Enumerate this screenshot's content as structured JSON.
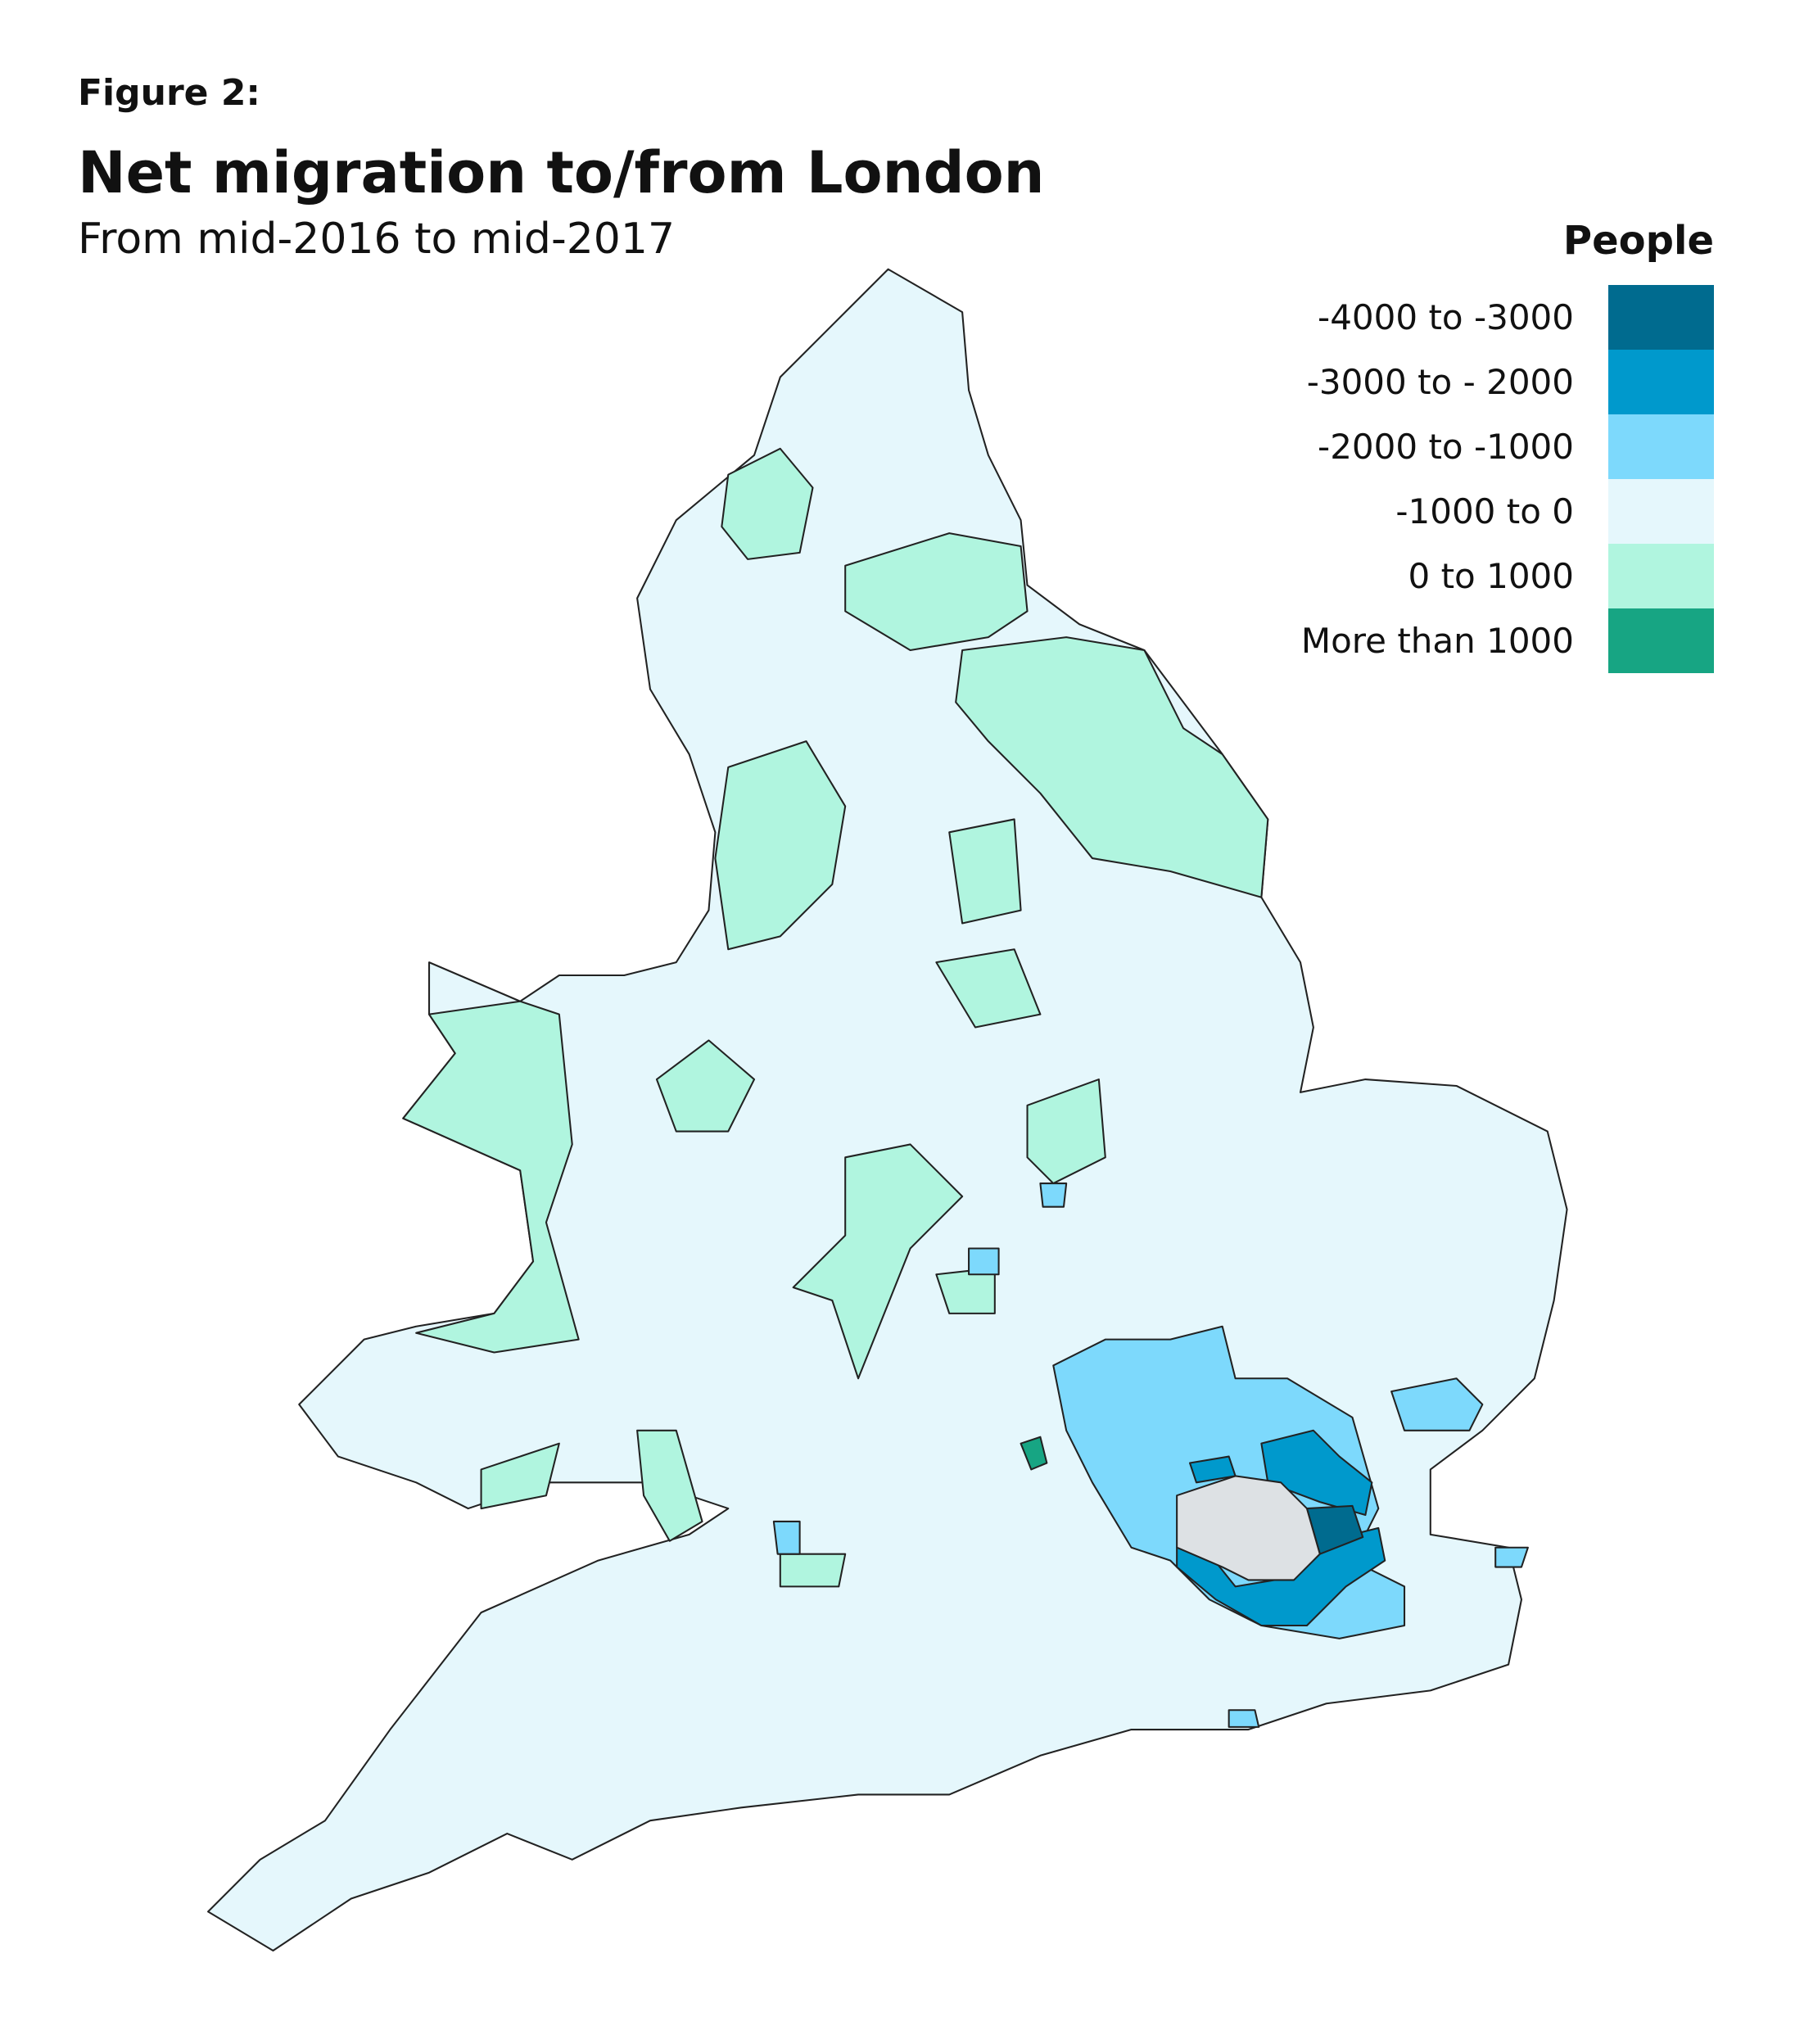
{
  "header": {
    "figure_label": "Figure 2:",
    "title": "Net migration to/from London",
    "subtitle": "From mid-2016 to mid-2017"
  },
  "legend": {
    "title": "People",
    "items": [
      {
        "label": "-4000 to -3000",
        "color": "#006b8f"
      },
      {
        "label": "-3000 to - 2000",
        "color": "#0099cc"
      },
      {
        "label": "-2000 to -1000",
        "color": "#7dd9fc"
      },
      {
        "label": "-1000 to 0",
        "color": "#e5f7fc"
      },
      {
        "label": "0 to 1000",
        "color": "#b0f5df"
      },
      {
        "label": "More than 1000",
        "color": "#17a583"
      }
    ]
  }
}
